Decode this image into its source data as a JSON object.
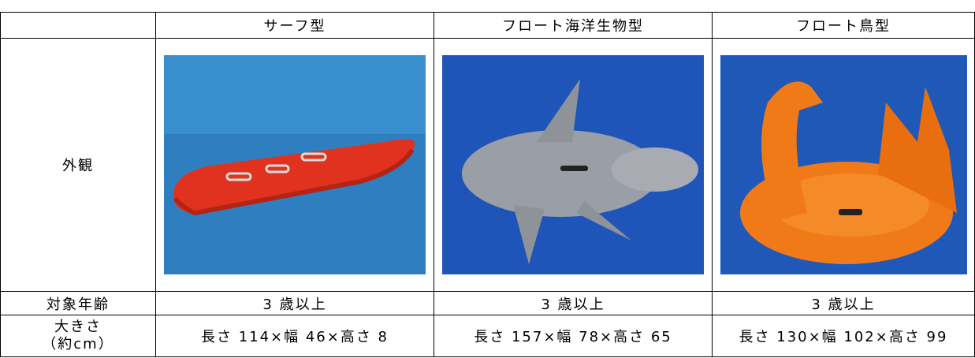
{
  "table": {
    "header": [
      "サーフ型",
      "フロート海洋生物型",
      "フロート鳥型"
    ],
    "rows": [
      {
        "label": [
          "外観"
        ],
        "cells": []
      },
      {
        "label": [
          "対象年齢"
        ],
        "cells": [
          "3 歳以上",
          "3 歳以上",
          "3 歳以上"
        ]
      },
      {
        "label": [
          "大きさ",
          "（約cm）"
        ],
        "cells": [
          "長さ 114×幅 46×高さ 8",
          "長さ 157×幅 78×高さ 65",
          "長さ 130×幅 102×高さ 99"
        ]
      }
    ]
  }
}
